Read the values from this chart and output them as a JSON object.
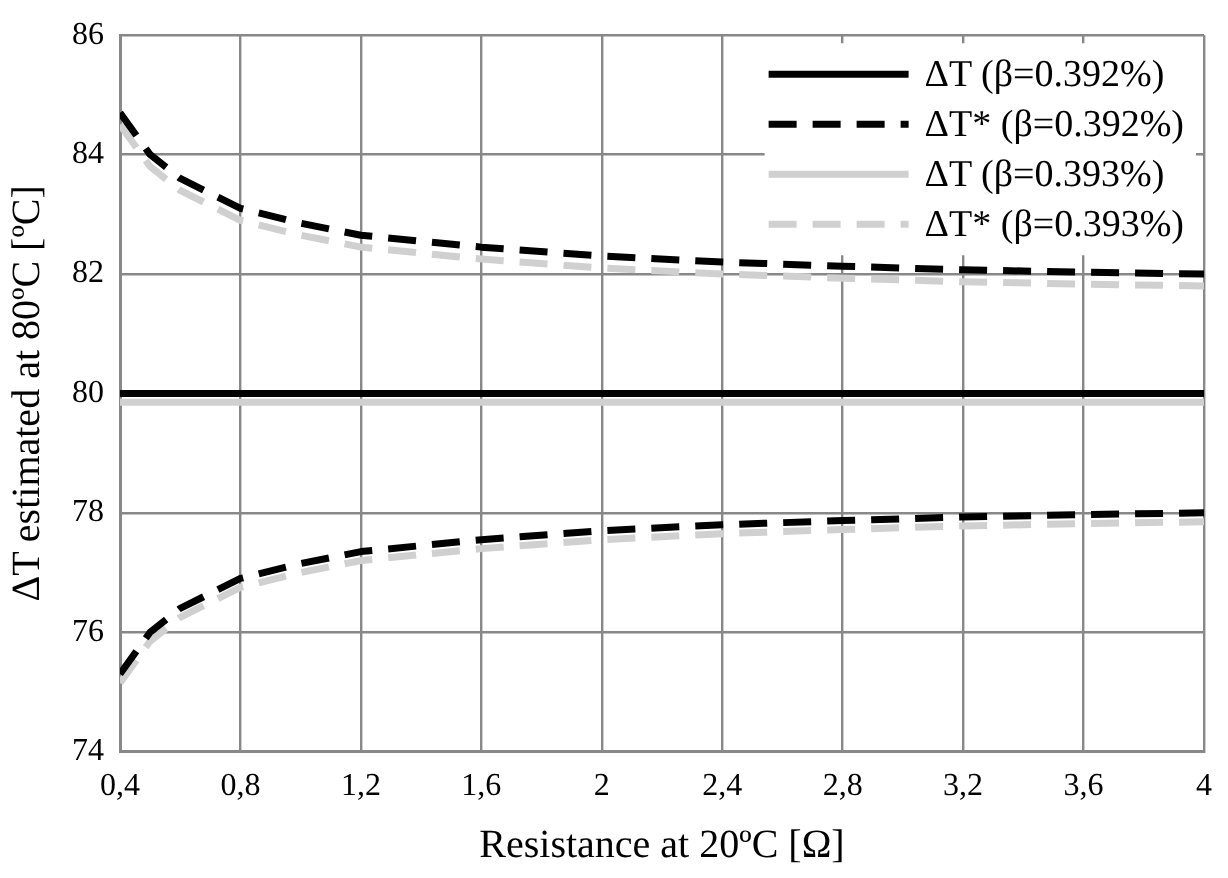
{
  "chart_data": {
    "type": "line",
    "xlabel": "Resistance at 20ºC [Ω]",
    "ylabel": "ΔT estimated at 80ºC [ºC]",
    "xlim": [
      0.4,
      4
    ],
    "ylim": [
      74,
      86
    ],
    "xticks": [
      {
        "value": 0.4,
        "label": "0,4"
      },
      {
        "value": 0.8,
        "label": "0,8"
      },
      {
        "value": 1.2,
        "label": "1,2"
      },
      {
        "value": 1.6,
        "label": "1,6"
      },
      {
        "value": 2,
        "label": "2"
      },
      {
        "value": 2.4,
        "label": "2,4"
      },
      {
        "value": 2.8,
        "label": "2,8"
      },
      {
        "value": 3.2,
        "label": "3,2"
      },
      {
        "value": 3.6,
        "label": "3,6"
      },
      {
        "value": 4,
        "label": "4"
      }
    ],
    "yticks": [
      74,
      76,
      78,
      80,
      82,
      84,
      86
    ],
    "grid": true,
    "legend": "top right",
    "marker": "none",
    "series": [
      {
        "name": "ΔT (β=0.392%)",
        "color": "#000000",
        "line_style": "solid",
        "x": [
          0.4,
          4
        ],
        "values": [
          80,
          80
        ]
      },
      {
        "name": "ΔT* (β=0.392%)",
        "color": "#000000",
        "line_style": "dashed",
        "x": [
          0.4,
          0.5,
          0.6,
          0.8,
          1.0,
          1.2,
          1.6,
          2.0,
          2.4,
          2.8,
          3.2,
          3.6,
          4
        ],
        "values": [
          84.7,
          84.0,
          83.6,
          83.1,
          82.85,
          82.65,
          82.45,
          82.3,
          82.2,
          82.13,
          82.07,
          82.03,
          82.0
        ]
      },
      {
        "color": "#000000",
        "line_style": "dashed",
        "x": [
          0.4,
          0.5,
          0.6,
          0.8,
          1.0,
          1.2,
          1.6,
          2.0,
          2.4,
          2.8,
          3.2,
          3.6,
          4
        ],
        "values": [
          75.3,
          76.0,
          76.4,
          76.9,
          77.15,
          77.35,
          77.55,
          77.7,
          77.8,
          77.87,
          77.93,
          77.97,
          78.0
        ]
      },
      {
        "name": "ΔT (β=0.393%)",
        "color": "#d0d0d0",
        "line_style": "solid",
        "x": [
          0.4,
          4
        ],
        "values": [
          79.85,
          79.85
        ]
      },
      {
        "name": "ΔT* (β=0.393%)",
        "color": "#d0d0d0",
        "line_style": "dashed",
        "x": [
          0.4,
          0.5,
          0.6,
          0.8,
          1.0,
          1.2,
          1.6,
          2.0,
          2.4,
          2.8,
          3.2,
          3.6,
          4
        ],
        "values": [
          84.5,
          83.8,
          83.4,
          82.9,
          82.65,
          82.45,
          82.25,
          82.1,
          82.0,
          81.93,
          81.87,
          81.83,
          81.8
        ]
      },
      {
        "color": "#d0d0d0",
        "line_style": "dashed",
        "x": [
          0.4,
          0.5,
          0.6,
          0.8,
          1.0,
          1.2,
          1.6,
          2.0,
          2.4,
          2.8,
          3.2,
          3.6,
          4
        ],
        "values": [
          75.15,
          75.85,
          76.25,
          76.75,
          77.0,
          77.2,
          77.4,
          77.55,
          77.65,
          77.72,
          77.78,
          77.82,
          77.85
        ]
      }
    ]
  }
}
